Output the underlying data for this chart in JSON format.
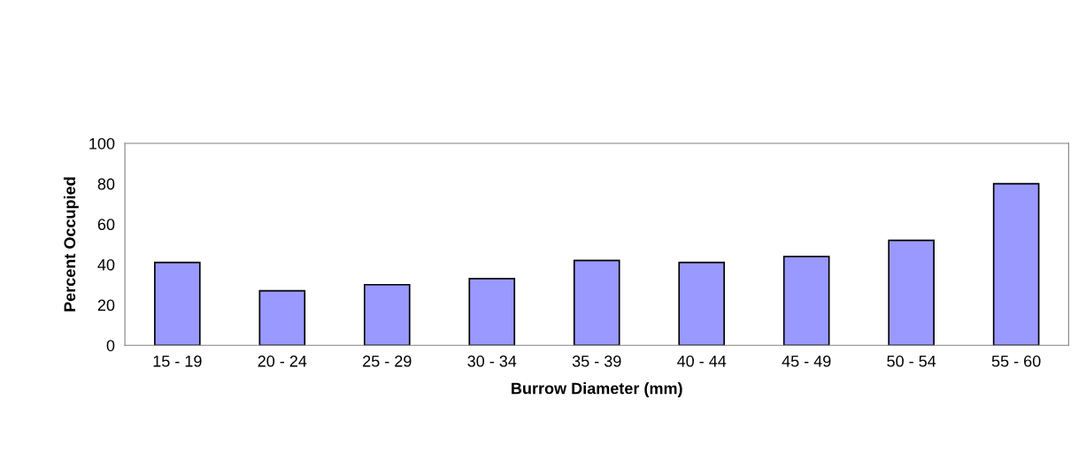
{
  "chart_data": {
    "type": "bar",
    "xlabel": "Burrow Diameter (mm)",
    "ylabel": "Percent Occupied",
    "categories": [
      "15 - 19",
      "20 - 24",
      "25 - 29",
      "30 - 34",
      "35 - 39",
      "40 - 44",
      "45 - 49",
      "50 - 54",
      "55 - 60"
    ],
    "values": [
      41,
      27,
      30,
      33,
      42,
      41,
      44,
      52,
      80
    ],
    "color": "#9999ff",
    "ylim": [
      0,
      100
    ],
    "yticks": [
      0,
      20,
      40,
      60,
      80,
      100
    ],
    "grid": false,
    "legend": false
  }
}
